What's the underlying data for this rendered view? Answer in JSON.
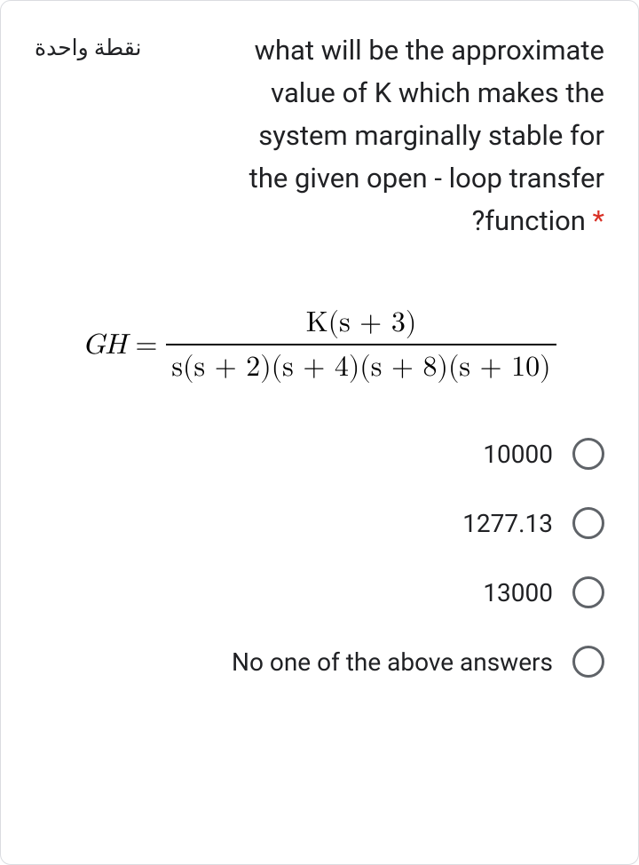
{
  "question": {
    "points_badge": "نقطة واحدة",
    "text_line1": "what will be the approximate",
    "text_line2": "value of K which makes the",
    "text_line3": "system marginally stable for",
    "text_line4": "the given open - loop transfer",
    "text_line5_prefix": "?function",
    "required_marker": "*"
  },
  "formula": {
    "lhs": "GH",
    "eq": "=",
    "numerator": "K(s + 3)",
    "denominator": "s(s + 2)(s + 4)(s + 8)(s + 10)"
  },
  "options": [
    {
      "label": "10000"
    },
    {
      "label": "1277.13"
    },
    {
      "label": "13000"
    },
    {
      "label": "No one of the above answers"
    }
  ],
  "style": {
    "border_color": "#dadce0",
    "text_color": "#202124",
    "radio_border": "#5f6368",
    "asterisk_color": "#d93025",
    "background": "#ffffff",
    "question_fontsize": 31,
    "badge_fontsize": 25,
    "formula_fontsize": 32,
    "option_fontsize": 28
  }
}
